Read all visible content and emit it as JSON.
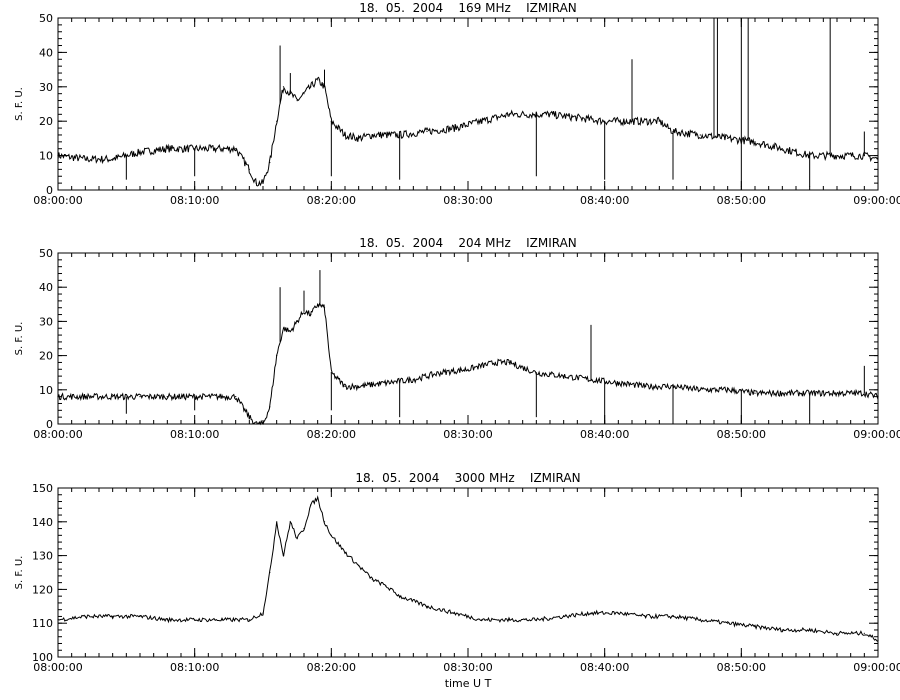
{
  "chart_data": [
    {
      "type": "line",
      "title": "18.  05.  2004    169 MHz    IZMIRAN",
      "ylabel": "S. F. U.",
      "xlabel": "",
      "xlim": [
        "08:00:00",
        "09:00:00"
      ],
      "ylim": [
        0,
        50
      ],
      "x_ticks": [
        "08:00:00",
        "08:10:00",
        "08:20:00",
        "08:30:00",
        "08:40:00",
        "08:50:00",
        "09:00:00"
      ],
      "y_ticks": [
        0,
        10,
        20,
        30,
        40,
        50
      ],
      "grid": false,
      "series": [
        {
          "x": [
            "08:00:00",
            "08:02:00",
            "08:04:00",
            "08:06:00",
            "08:08:00",
            "08:10:00",
            "08:12:00",
            "08:13:00",
            "08:14:00",
            "08:14:30",
            "08:15:00",
            "08:15:30",
            "08:16:00",
            "08:16:30",
            "08:17:00",
            "08:17:30",
            "08:18:00",
            "08:18:30",
            "08:19:00",
            "08:19:30",
            "08:20:00",
            "08:21:00",
            "08:22:00",
            "08:23:00",
            "08:25:00",
            "08:27:00",
            "08:29:00",
            "08:31:00",
            "08:33:00",
            "08:35:00",
            "08:36:00",
            "08:38:00",
            "08:40:00",
            "08:42:00",
            "08:44:00",
            "08:45:00",
            "08:47:00",
            "08:49:00",
            "08:51:00",
            "08:53:00",
            "08:55:00",
            "08:57:00",
            "08:59:00",
            "09:00:00"
          ],
          "values": [
            10,
            9,
            9,
            11,
            12,
            12,
            12,
            12,
            6,
            2,
            2,
            8,
            20,
            30,
            28,
            26,
            28,
            30,
            32,
            30,
            20,
            16,
            15,
            16,
            16,
            17,
            18,
            20,
            22,
            22,
            22,
            21,
            20,
            20,
            20,
            17,
            16,
            15,
            14,
            12,
            10,
            10,
            10,
            9
          ]
        }
      ],
      "spikes": [
        {
          "x": "08:16:15",
          "value": 42
        },
        {
          "x": "08:17:00",
          "value": 34
        },
        {
          "x": "08:19:30",
          "value": 35
        },
        {
          "x": "08:42:00",
          "value": 38
        },
        {
          "x": "08:48:00",
          "value": 50
        },
        {
          "x": "08:48:15",
          "value": 50
        },
        {
          "x": "08:50:00",
          "value": 50
        },
        {
          "x": "08:50:30",
          "value": 50
        },
        {
          "x": "08:56:30",
          "value": 50
        },
        {
          "x": "08:59:00",
          "value": 17
        }
      ],
      "dips": [
        {
          "x": "08:05:00",
          "value": 3
        },
        {
          "x": "08:10:00",
          "value": 4
        },
        {
          "x": "08:20:00",
          "value": 4
        },
        {
          "x": "08:25:00",
          "value": 3
        },
        {
          "x": "08:35:00",
          "value": 4
        },
        {
          "x": "08:40:00",
          "value": 3
        },
        {
          "x": "08:45:00",
          "value": 3
        },
        {
          "x": "08:50:00",
          "value": 1
        },
        {
          "x": "08:55:00",
          "value": 1
        }
      ]
    },
    {
      "type": "line",
      "title": "18.  05.  2004    204 MHz    IZMIRAN",
      "ylabel": "S. F. U.",
      "xlabel": "",
      "xlim": [
        "08:00:00",
        "09:00:00"
      ],
      "ylim": [
        0,
        50
      ],
      "x_ticks": [
        "08:00:00",
        "08:10:00",
        "08:20:00",
        "08:30:00",
        "08:40:00",
        "08:50:00",
        "09:00:00"
      ],
      "y_ticks": [
        0,
        10,
        20,
        30,
        40,
        50
      ],
      "grid": false,
      "series": [
        {
          "x": [
            "08:00:00",
            "08:02:00",
            "08:04:00",
            "08:06:00",
            "08:08:00",
            "08:10:00",
            "08:12:00",
            "08:13:00",
            "08:14:00",
            "08:14:30",
            "08:15:00",
            "08:15:30",
            "08:16:00",
            "08:16:30",
            "08:17:00",
            "08:17:30",
            "08:18:00",
            "08:18:30",
            "08:19:00",
            "08:19:30",
            "08:20:00",
            "08:21:00",
            "08:22:00",
            "08:24:00",
            "08:26:00",
            "08:28:00",
            "08:30:00",
            "08:32:00",
            "08:33:00",
            "08:35:00",
            "08:37:00",
            "08:39:00",
            "08:41:00",
            "08:43:00",
            "08:45:00",
            "08:47:00",
            "08:49:00",
            "08:51:00",
            "08:53:00",
            "08:55:00",
            "08:57:00",
            "08:59:00",
            "09:00:00"
          ],
          "values": [
            8,
            8,
            8,
            8,
            8,
            8,
            8,
            8,
            2,
            0,
            0,
            5,
            20,
            28,
            27,
            30,
            33,
            32,
            35,
            34,
            15,
            11,
            11,
            12,
            13,
            15,
            16,
            18,
            18,
            15,
            14,
            13,
            12,
            11,
            11,
            10,
            10,
            9,
            9,
            9,
            9,
            9,
            8
          ]
        }
      ],
      "spikes": [
        {
          "x": "08:16:15",
          "value": 40
        },
        {
          "x": "08:18:00",
          "value": 39
        },
        {
          "x": "08:19:10",
          "value": 45
        },
        {
          "x": "08:39:00",
          "value": 29
        },
        {
          "x": "08:59:00",
          "value": 17
        }
      ],
      "dips": [
        {
          "x": "08:05:00",
          "value": 3
        },
        {
          "x": "08:10:00",
          "value": 4
        },
        {
          "x": "08:20:00",
          "value": 4
        },
        {
          "x": "08:25:00",
          "value": 2
        },
        {
          "x": "08:35:00",
          "value": 2
        },
        {
          "x": "08:40:00",
          "value": 0
        },
        {
          "x": "08:45:00",
          "value": 1
        },
        {
          "x": "08:50:00",
          "value": 0
        },
        {
          "x": "08:55:00",
          "value": 1
        }
      ]
    },
    {
      "type": "line",
      "title": "18.  05.  2004    3000 MHz    IZMIRAN",
      "ylabel": "S. F. U.",
      "xlabel": "time  U T",
      "xlim": [
        "08:00:00",
        "09:00:00"
      ],
      "ylim": [
        100,
        150
      ],
      "x_ticks": [
        "08:00:00",
        "08:10:00",
        "08:20:00",
        "08:30:00",
        "08:40:00",
        "08:50:00",
        "09:00:00"
      ],
      "y_ticks": [
        100,
        110,
        120,
        130,
        140,
        150
      ],
      "grid": false,
      "series": [
        {
          "x": [
            "08:00:00",
            "08:02:00",
            "08:04:00",
            "08:06:00",
            "08:08:00",
            "08:10:00",
            "08:12:00",
            "08:14:00",
            "08:15:00",
            "08:15:30",
            "08:16:00",
            "08:16:30",
            "08:17:00",
            "08:17:30",
            "08:18:00",
            "08:18:30",
            "08:19:00",
            "08:19:30",
            "08:20:00",
            "08:21:00",
            "08:22:00",
            "08:23:00",
            "08:24:00",
            "08:25:00",
            "08:27:00",
            "08:29:00",
            "08:31:00",
            "08:33:00",
            "08:35:00",
            "08:37:00",
            "08:39:00",
            "08:41:00",
            "08:43:00",
            "08:45:00",
            "08:47:00",
            "08:49:00",
            "08:51:00",
            "08:53:00",
            "08:55:00",
            "08:57:00",
            "08:59:00",
            "09:00:00"
          ],
          "values": [
            111,
            112,
            112,
            112,
            111,
            111,
            111,
            111,
            113,
            125,
            140,
            130,
            140,
            135,
            138,
            145,
            147,
            140,
            136,
            131,
            127,
            123,
            121,
            118,
            115,
            113,
            111,
            111,
            111,
            112,
            113,
            113,
            112,
            112,
            111,
            110,
            109,
            108,
            108,
            107,
            107,
            105
          ]
        }
      ]
    }
  ]
}
